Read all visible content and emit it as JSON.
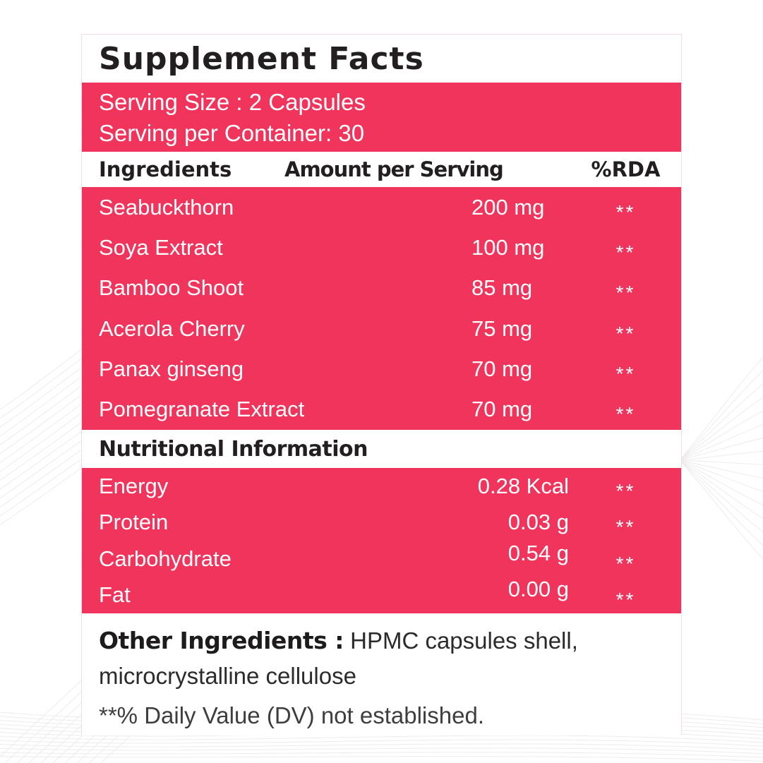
{
  "label": {
    "title": "Supplement Facts",
    "serving": {
      "size_line": "Serving Size : 2 Capsules",
      "container_line": "Serving per Container: 30"
    },
    "table": {
      "headers": {
        "ingredient": "Ingredients",
        "amount": "Amount per Serving",
        "rda": "%RDA"
      },
      "ingredients": [
        {
          "name": "Seabuckthorn",
          "amount": "200 mg",
          "rda": "**"
        },
        {
          "name": "Soya Extract",
          "amount": "100 mg",
          "rda": "**"
        },
        {
          "name": "Bamboo Shoot",
          "amount": "85 mg",
          "rda": "**"
        },
        {
          "name": "Acerola Cherry",
          "amount": "75 mg",
          "rda": "**"
        },
        {
          "name": "Panax ginseng",
          "amount": "70 mg",
          "rda": "**"
        },
        {
          "name": "Pomegranate Extract",
          "amount": "70 mg",
          "rda": "**"
        }
      ]
    },
    "nutrition": {
      "heading": "Nutritional Information",
      "rows": [
        {
          "name": "Energy",
          "amount": "0.28 Kcal",
          "rda": "**"
        },
        {
          "name": "Protein",
          "amount": "0.03 g",
          "rda": "**"
        },
        {
          "name": "Carbohydrate",
          "amount": "0.54 g",
          "rda": "**"
        },
        {
          "name": "Fat",
          "amount": "0.00 g",
          "rda": "**"
        }
      ]
    },
    "other_ingredients": {
      "label": "Other Ingredients :",
      "value": "HPMC capsules shell, microcrystalline cellulose"
    },
    "footnote": "**% Daily Value (DV) not established."
  },
  "colors": {
    "accent_pink": "#f0345c",
    "heading_ink": "#231f20",
    "row_text": "#ffffff"
  }
}
